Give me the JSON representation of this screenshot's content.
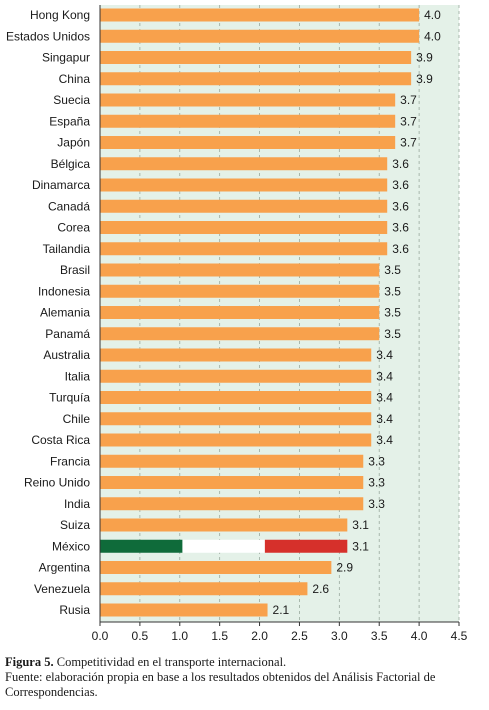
{
  "chart_data": {
    "type": "bar",
    "orientation": "horizontal",
    "categories": [
      "Hong Kong",
      "Estados Unidos",
      "Singapur",
      "China",
      "Suecia",
      "España",
      "Japón",
      "Bélgica",
      "Dinamarca",
      "Canadá",
      "Corea",
      "Tailandia",
      "Brasil",
      "Indonesia",
      "Alemania",
      "Panamá",
      "Australia",
      "Italia",
      "Turquía",
      "Chile",
      "Costa Rica",
      "Francia",
      "Reino Unido",
      "India",
      "Suiza",
      "México",
      "Argentina",
      "Venezuela",
      "Rusia"
    ],
    "values": [
      4.0,
      4.0,
      3.9,
      3.9,
      3.7,
      3.7,
      3.7,
      3.6,
      3.6,
      3.6,
      3.6,
      3.6,
      3.5,
      3.5,
      3.5,
      3.5,
      3.4,
      3.4,
      3.4,
      3.4,
      3.4,
      3.3,
      3.3,
      3.3,
      3.1,
      3.1,
      2.9,
      2.6,
      2.1
    ],
    "value_labels": [
      "4.0",
      "4.0",
      "3.9",
      "3.9",
      "3.7",
      "3.7",
      "3.7",
      "3.6",
      "3.6",
      "3.6",
      "3.6",
      "3.6",
      "3.5",
      "3.5",
      "3.5",
      "3.5",
      "3.4",
      "3.4",
      "3.4",
      "3.4",
      "3.4",
      "3.3",
      "3.3",
      "3.3",
      "3.1",
      "3.1",
      "2.9",
      "2.6",
      "2.1"
    ],
    "xlim": [
      0,
      4.5
    ],
    "x_ticks": [
      "0.0",
      "0.5",
      "1.0",
      "1.5",
      "2.0",
      "2.5",
      "3.0",
      "3.5",
      "4.0",
      "4.5"
    ],
    "highlight_category": "México",
    "grid": "vertical dashed lines at each tick",
    "colors": {
      "bar": "#f8a14c",
      "background": "#e4f1e8",
      "grid": "#9aaa9f",
      "mexico_green": "#0f6b3a",
      "mexico_white": "#ffffff",
      "mexico_red": "#d6302b"
    }
  },
  "caption": {
    "figure_label": "Figura 5.",
    "figure_title": " Competitividad en el transporte internacional.",
    "source": "Fuente: elaboración propia en base a los resultados obtenidos del Análisis Factorial de Correspondencias."
  }
}
